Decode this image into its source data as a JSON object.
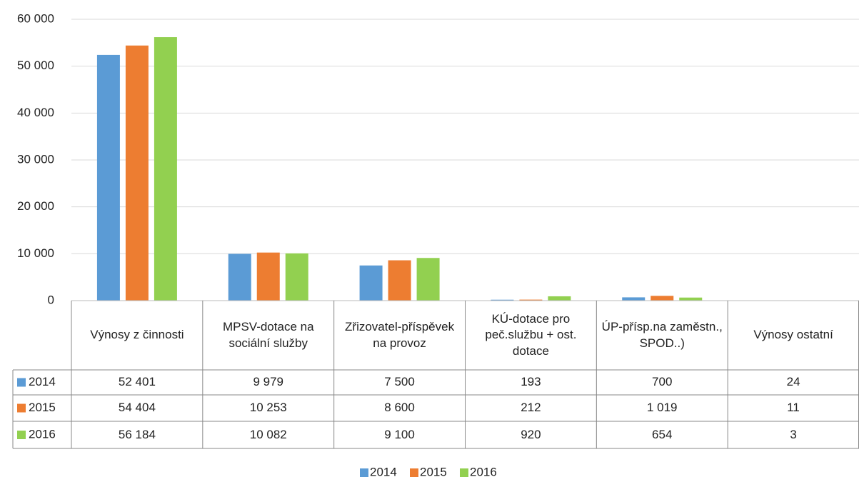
{
  "chart_data": {
    "type": "bar",
    "categories": [
      "Výnosy z činnosti",
      "MPSV-dotace na sociální služby",
      "Zřizovatel-příspěvek na provoz",
      "KÚ-dotace pro peč.službu + ost. dotace",
      "ÚP-přísp.na zaměstn., SPOD..)",
      "Výnosy ostatní"
    ],
    "series": [
      {
        "name": "2014",
        "color": "#5b9bd5",
        "values": [
          52401,
          9979,
          7500,
          193,
          700,
          24
        ],
        "value_labels": [
          "52 401",
          "9 979",
          "7 500",
          "193",
          "700",
          "24"
        ]
      },
      {
        "name": "2015",
        "color": "#ed7d31",
        "values": [
          54404,
          10253,
          8600,
          212,
          1019,
          11
        ],
        "value_labels": [
          "54 404",
          "10 253",
          "8 600",
          "212",
          "1 019",
          "11"
        ]
      },
      {
        "name": "2016",
        "color": "#92d050",
        "values": [
          56184,
          10082,
          9100,
          920,
          654,
          3
        ],
        "value_labels": [
          "56 184",
          "10 082",
          "9 100",
          "920",
          "654",
          "3"
        ]
      }
    ],
    "ylim": [
      0,
      60000
    ],
    "yticks": [
      0,
      {
        "value": 10000,
        "label": "10 000"
      },
      {
        "value": 20000,
        "label": "20 000"
      },
      {
        "value": 30000,
        "label": "30 000"
      },
      {
        "value": 40000,
        "label": "40 000"
      },
      {
        "value": 50000,
        "label": "50 000"
      },
      {
        "value": 60000,
        "label": "60 000"
      }
    ],
    "grid": true,
    "legend": "bottom"
  }
}
